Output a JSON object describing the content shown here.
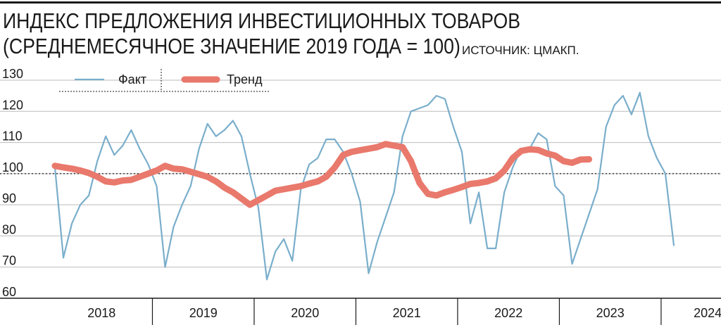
{
  "header": {
    "title_line1": "ИНДЕКС ПРЕДЛОЖЕНИЯ ИНВЕСТИЦИОННЫХ ТОВАРОВ",
    "title_line2": "(СРЕДНЕМЕСЯЧНОЕ ЗНАЧЕНИЕ 2019 ГОДА = 100)",
    "source": "ИСТОЧНИК: ЦМАКП."
  },
  "colors": {
    "fact": "#7aaecb",
    "trend": "#e9796c",
    "axis": "#1a1a1a",
    "grid": "#bbbbbb"
  },
  "chart_data": {
    "type": "line",
    "x_unit": "months since Jan 2018",
    "xlim": [
      -1,
      82
    ],
    "ylim": [
      60,
      130
    ],
    "yticks": [
      60,
      70,
      80,
      90,
      100,
      110,
      120,
      130
    ],
    "reference_line": 100,
    "year_labels": [
      {
        "label": "2018",
        "center": 5.5
      },
      {
        "label": "2019",
        "center": 17.5
      },
      {
        "label": "2020",
        "center": 29.5
      },
      {
        "label": "2021",
        "center": 41.5
      },
      {
        "label": "2022",
        "center": 53.5
      },
      {
        "label": "2023",
        "center": 65.5
      },
      {
        "label": "2024",
        "center": 77
      }
    ],
    "year_separators": [
      11.5,
      23.5,
      35.5,
      47.5,
      59.5,
      71.5
    ],
    "series": [
      {
        "name": "Факт",
        "values": [
          102,
          73,
          84,
          90,
          93,
          104,
          112,
          106,
          109,
          114,
          108,
          103,
          96,
          70,
          83,
          90,
          96,
          108,
          116,
          112,
          114,
          117,
          112,
          100,
          89,
          66,
          75,
          79,
          72,
          95,
          103,
          105,
          111,
          111,
          107,
          100,
          91,
          68,
          78,
          86,
          94,
          112,
          120,
          121,
          122,
          125,
          124,
          115,
          107,
          84,
          94,
          76,
          76,
          94,
          102,
          108,
          108,
          113,
          111,
          96,
          93,
          71,
          79,
          87,
          95,
          115,
          122,
          125,
          119,
          126,
          112,
          105,
          100,
          77
        ]
      },
      {
        "name": "Тренд",
        "values": [
          102.5,
          102,
          101.6,
          101,
          100.2,
          99,
          97.5,
          97.2,
          97.8,
          98,
          99,
          100,
          101,
          102.5,
          101.6,
          101.4,
          100.6,
          99.8,
          99,
          97.5,
          95.5,
          94,
          92,
          90,
          91.5,
          93,
          94.5,
          95,
          95.5,
          96,
          96.8,
          97.5,
          99,
          102,
          106,
          107,
          107.5,
          108,
          108.5,
          109.5,
          109,
          108.5,
          104,
          97,
          93.5,
          93,
          94,
          94.8,
          95.7,
          96.7,
          97,
          97.5,
          98.5,
          101,
          105,
          107.3,
          107.8,
          107.6,
          106.5,
          105.8,
          104,
          103.5,
          104.5,
          104.6
        ]
      }
    ],
    "legend": {
      "position": "top-left",
      "items": [
        {
          "label": "Факт",
          "series": 0
        },
        {
          "label": "Тренд",
          "series": 1
        }
      ]
    }
  }
}
